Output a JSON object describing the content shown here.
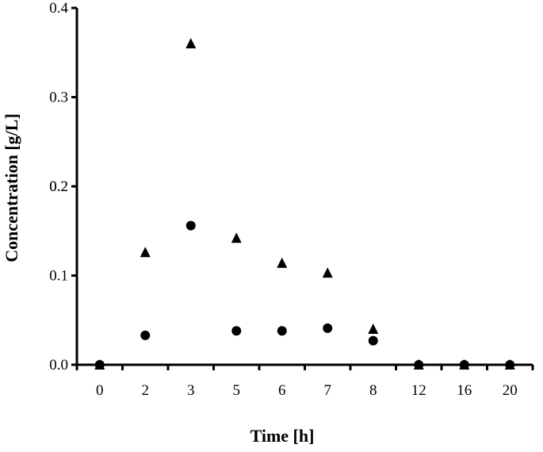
{
  "chart_data": {
    "type": "scatter",
    "title": "",
    "xlabel": "Time [h]",
    "ylabel": "Concentration [g/L]",
    "x_scale": "categorical",
    "categories": [
      "0",
      "2",
      "3",
      "5",
      "6",
      "7",
      "8",
      "12",
      "16",
      "20"
    ],
    "ylim": [
      0,
      0.4
    ],
    "y_ticks": [
      "0.0",
      "0.1",
      "0.2",
      "0.2",
      "0.3",
      "0.4"
    ],
    "y_tick_values": [
      0.0,
      0.1,
      0.2,
      0.2,
      0.3,
      0.4
    ],
    "grid": false,
    "legend": "none",
    "series": [
      {
        "marker": "circle",
        "color": "#000000",
        "values": [
          0.0,
          0.033,
          0.156,
          0.038,
          0.038,
          0.041,
          0.027,
          0.0,
          0.0,
          0.0
        ]
      },
      {
        "marker": "triangle",
        "color": "#000000",
        "values": [
          0.0,
          0.126,
          0.36,
          0.142,
          0.114,
          0.103,
          0.04,
          0.0,
          0.0,
          0.0
        ]
      }
    ]
  }
}
